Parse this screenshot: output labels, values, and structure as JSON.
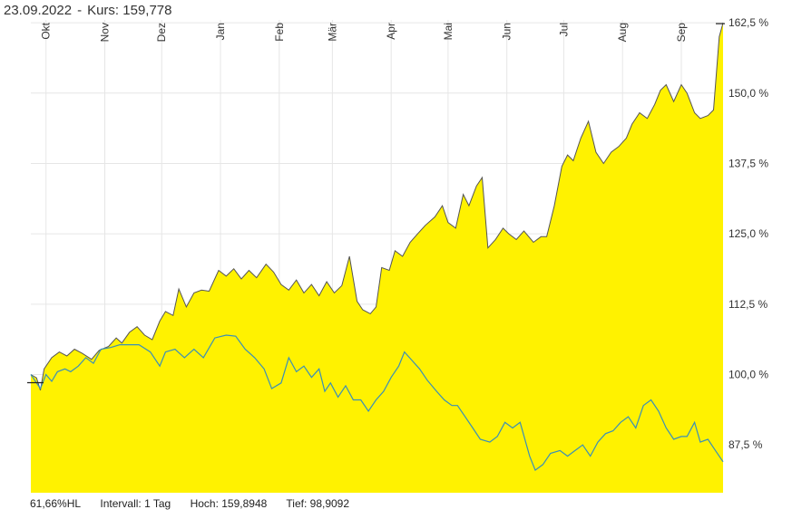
{
  "header": {
    "date": "23.09.2022",
    "separator": "-",
    "price_label": "Kurs: 159,778"
  },
  "footer": {
    "performance": "61,66%HL",
    "interval": "Intervall: 1 Tag",
    "high": "Hoch: 159,8948",
    "low": "Tief: 98,9092"
  },
  "colors": {
    "area_fill": "#fff200",
    "main_line": "#555555",
    "benchmark_line": "#3a8fb7",
    "grid": "#e6e6e6"
  },
  "chart_data": {
    "type": "area",
    "title": "",
    "xlabel": "",
    "ylabel": "",
    "ylim": [
      79,
      163
    ],
    "y_unit": "%",
    "yticks": [
      {
        "value": 162.5,
        "label": "162,5 %"
      },
      {
        "value": 150,
        "label": "150,0 %"
      },
      {
        "value": 137.5,
        "label": "137,5 %"
      },
      {
        "value": 125,
        "label": "125,0 %"
      },
      {
        "value": 112.5,
        "label": "112,5 %"
      },
      {
        "value": 100,
        "label": "100,0 %"
      },
      {
        "value": 87.5,
        "label": "87,5 %"
      }
    ],
    "x_start": "2021-09-23",
    "x_end": "2022-09-23",
    "months": [
      {
        "date": "2021-10-01",
        "label": "Okt"
      },
      {
        "date": "2021-11-01",
        "label": "Nov"
      },
      {
        "date": "2021-12-01",
        "label": "Dez"
      },
      {
        "date": "2022-01-01",
        "label": "Jan"
      },
      {
        "date": "2022-02-01",
        "label": "Feb"
      },
      {
        "date": "2022-03-01",
        "label": "Mär"
      },
      {
        "date": "2022-04-01",
        "label": "Apr"
      },
      {
        "date": "2022-05-01",
        "label": "Mai"
      },
      {
        "date": "2022-06-01",
        "label": "Jun"
      },
      {
        "date": "2022-07-01",
        "label": "Jul"
      },
      {
        "date": "2022-08-01",
        "label": "Aug"
      },
      {
        "date": "2022-09-01",
        "label": "Sep"
      }
    ],
    "series": [
      {
        "role": "main",
        "style": "filled-area",
        "points": [
          [
            "2021-09-23",
            100.0
          ],
          [
            "2021-09-26",
            99.4
          ],
          [
            "2021-09-28",
            97.2
          ],
          [
            "2021-09-30",
            101.0
          ],
          [
            "2021-10-04",
            103.0
          ],
          [
            "2021-10-08",
            104.0
          ],
          [
            "2021-10-12",
            103.3
          ],
          [
            "2021-10-16",
            104.5
          ],
          [
            "2021-10-20",
            103.8
          ],
          [
            "2021-10-25",
            102.7
          ],
          [
            "2021-10-29",
            104.3
          ],
          [
            "2021-11-03",
            105.0
          ],
          [
            "2021-11-07",
            106.5
          ],
          [
            "2021-11-10",
            105.6
          ],
          [
            "2021-11-14",
            107.5
          ],
          [
            "2021-11-18",
            108.5
          ],
          [
            "2021-11-22",
            107.0
          ],
          [
            "2021-11-26",
            106.2
          ],
          [
            "2021-11-30",
            109.5
          ],
          [
            "2021-12-03",
            111.2
          ],
          [
            "2021-12-07",
            110.5
          ],
          [
            "2021-12-10",
            115.2
          ],
          [
            "2021-12-14",
            112.0
          ],
          [
            "2021-12-18",
            114.5
          ],
          [
            "2021-12-22",
            115.0
          ],
          [
            "2021-12-26",
            114.8
          ],
          [
            "2021-12-31",
            118.5
          ],
          [
            "2022-01-04",
            117.5
          ],
          [
            "2022-01-08",
            118.8
          ],
          [
            "2022-01-12",
            117.0
          ],
          [
            "2022-01-16",
            118.5
          ],
          [
            "2022-01-20",
            117.2
          ],
          [
            "2022-01-25",
            119.6
          ],
          [
            "2022-01-29",
            118.2
          ],
          [
            "2022-02-02",
            116.0
          ],
          [
            "2022-02-06",
            115.0
          ],
          [
            "2022-02-10",
            116.8
          ],
          [
            "2022-02-14",
            114.5
          ],
          [
            "2022-02-18",
            116.0
          ],
          [
            "2022-02-22",
            114.0
          ],
          [
            "2022-02-26",
            116.5
          ],
          [
            "2022-03-02",
            114.5
          ],
          [
            "2022-03-06",
            115.8
          ],
          [
            "2022-03-10",
            121.0
          ],
          [
            "2022-03-14",
            113.0
          ],
          [
            "2022-03-17",
            111.5
          ],
          [
            "2022-03-21",
            110.8
          ],
          [
            "2022-03-24",
            112.0
          ],
          [
            "2022-03-27",
            119.0
          ],
          [
            "2022-03-31",
            118.5
          ],
          [
            "2022-04-03",
            122.0
          ],
          [
            "2022-04-07",
            121.0
          ],
          [
            "2022-04-11",
            123.5
          ],
          [
            "2022-04-15",
            125.0
          ],
          [
            "2022-04-19",
            126.5
          ],
          [
            "2022-04-24",
            128.0
          ],
          [
            "2022-04-28",
            130.0
          ],
          [
            "2022-05-01",
            127.0
          ],
          [
            "2022-05-05",
            126.0
          ],
          [
            "2022-05-09",
            132.0
          ],
          [
            "2022-05-12",
            130.0
          ],
          [
            "2022-05-16",
            133.5
          ],
          [
            "2022-05-19",
            135.0
          ],
          [
            "2022-05-22",
            122.5
          ],
          [
            "2022-05-26",
            124.0
          ],
          [
            "2022-05-30",
            126.0
          ],
          [
            "2022-06-02",
            125.0
          ],
          [
            "2022-06-06",
            124.0
          ],
          [
            "2022-06-10",
            125.5
          ],
          [
            "2022-06-15",
            123.5
          ],
          [
            "2022-06-19",
            124.5
          ],
          [
            "2022-06-22",
            124.5
          ],
          [
            "2022-06-26",
            130.0
          ],
          [
            "2022-06-30",
            137.0
          ],
          [
            "2022-07-03",
            139.0
          ],
          [
            "2022-07-06",
            138.0
          ],
          [
            "2022-07-10",
            142.0
          ],
          [
            "2022-07-14",
            145.0
          ],
          [
            "2022-07-18",
            139.5
          ],
          [
            "2022-07-22",
            137.5
          ],
          [
            "2022-07-26",
            139.5
          ],
          [
            "2022-07-30",
            140.5
          ],
          [
            "2022-08-03",
            142.0
          ],
          [
            "2022-08-06",
            144.5
          ],
          [
            "2022-08-10",
            146.5
          ],
          [
            "2022-08-14",
            145.5
          ],
          [
            "2022-08-18",
            148.0
          ],
          [
            "2022-08-21",
            150.5
          ],
          [
            "2022-08-24",
            151.5
          ],
          [
            "2022-08-28",
            148.5
          ],
          [
            "2022-09-01",
            151.5
          ],
          [
            "2022-09-04",
            150.0
          ],
          [
            "2022-09-08",
            146.5
          ],
          [
            "2022-09-11",
            145.5
          ],
          [
            "2022-09-15",
            146.0
          ],
          [
            "2022-09-18",
            147.0
          ],
          [
            "2022-09-21",
            160.0
          ],
          [
            "2022-09-23",
            162.5
          ]
        ]
      },
      {
        "role": "benchmark",
        "style": "line",
        "points": [
          [
            "2021-09-23",
            100.0
          ],
          [
            "2021-09-26",
            98.5
          ],
          [
            "2021-09-28",
            97.5
          ],
          [
            "2021-10-01",
            100.0
          ],
          [
            "2021-10-04",
            98.8
          ],
          [
            "2021-10-07",
            100.5
          ],
          [
            "2021-10-11",
            101.0
          ],
          [
            "2021-10-14",
            100.5
          ],
          [
            "2021-10-18",
            101.5
          ],
          [
            "2021-10-22",
            103.0
          ],
          [
            "2021-10-26",
            102.0
          ],
          [
            "2021-10-30",
            104.5
          ],
          [
            "2021-11-04",
            104.8
          ],
          [
            "2021-11-09",
            105.3
          ],
          [
            "2021-11-14",
            105.3
          ],
          [
            "2021-11-19",
            105.3
          ],
          [
            "2021-11-25",
            104.0
          ],
          [
            "2021-11-30",
            101.5
          ],
          [
            "2021-12-03",
            104.0
          ],
          [
            "2021-12-08",
            104.5
          ],
          [
            "2021-12-13",
            103.0
          ],
          [
            "2021-12-18",
            104.5
          ],
          [
            "2021-12-23",
            103.0
          ],
          [
            "2021-12-29",
            106.5
          ],
          [
            "2022-01-04",
            107.0
          ],
          [
            "2022-01-09",
            106.8
          ],
          [
            "2022-01-14",
            104.5
          ],
          [
            "2022-01-19",
            103.0
          ],
          [
            "2022-01-24",
            101.0
          ],
          [
            "2022-01-28",
            97.5
          ],
          [
            "2022-02-02",
            98.5
          ],
          [
            "2022-02-06",
            103.0
          ],
          [
            "2022-02-10",
            100.5
          ],
          [
            "2022-02-14",
            101.5
          ],
          [
            "2022-02-18",
            99.5
          ],
          [
            "2022-02-22",
            101.0
          ],
          [
            "2022-02-25",
            97.0
          ],
          [
            "2022-02-28",
            98.5
          ],
          [
            "2022-03-04",
            96.0
          ],
          [
            "2022-03-08",
            98.0
          ],
          [
            "2022-03-12",
            95.5
          ],
          [
            "2022-03-16",
            95.5
          ],
          [
            "2022-03-20",
            93.5
          ],
          [
            "2022-03-24",
            95.5
          ],
          [
            "2022-03-28",
            97.0
          ],
          [
            "2022-04-01",
            99.5
          ],
          [
            "2022-04-05",
            101.5
          ],
          [
            "2022-04-08",
            104.0
          ],
          [
            "2022-04-12",
            102.5
          ],
          [
            "2022-04-16",
            101.0
          ],
          [
            "2022-04-20",
            99.0
          ],
          [
            "2022-04-25",
            97.0
          ],
          [
            "2022-04-29",
            95.5
          ],
          [
            "2022-05-03",
            94.5
          ],
          [
            "2022-05-06",
            94.5
          ],
          [
            "2022-05-10",
            92.5
          ],
          [
            "2022-05-14",
            90.5
          ],
          [
            "2022-05-18",
            88.5
          ],
          [
            "2022-05-23",
            88.0
          ],
          [
            "2022-05-27",
            89.0
          ],
          [
            "2022-05-31",
            91.5
          ],
          [
            "2022-06-04",
            90.5
          ],
          [
            "2022-06-08",
            91.5
          ],
          [
            "2022-06-13",
            85.5
          ],
          [
            "2022-06-16",
            83.0
          ],
          [
            "2022-06-20",
            84.0
          ],
          [
            "2022-06-24",
            86.0
          ],
          [
            "2022-06-29",
            86.5
          ],
          [
            "2022-07-03",
            85.5
          ],
          [
            "2022-07-07",
            86.5
          ],
          [
            "2022-07-11",
            87.5
          ],
          [
            "2022-07-15",
            85.5
          ],
          [
            "2022-07-19",
            88.0
          ],
          [
            "2022-07-23",
            89.5
          ],
          [
            "2022-07-27",
            90.0
          ],
          [
            "2022-07-31",
            91.5
          ],
          [
            "2022-08-04",
            92.5
          ],
          [
            "2022-08-08",
            90.5
          ],
          [
            "2022-08-12",
            94.5
          ],
          [
            "2022-08-16",
            95.5
          ],
          [
            "2022-08-20",
            93.5
          ],
          [
            "2022-08-24",
            90.5
          ],
          [
            "2022-08-28",
            88.5
          ],
          [
            "2022-09-01",
            89.0
          ],
          [
            "2022-09-04",
            89.0
          ],
          [
            "2022-09-08",
            91.5
          ],
          [
            "2022-09-11",
            88.0
          ],
          [
            "2022-09-15",
            88.5
          ],
          [
            "2022-09-18",
            87.0
          ],
          [
            "2022-09-23",
            84.5
          ]
        ]
      }
    ]
  }
}
